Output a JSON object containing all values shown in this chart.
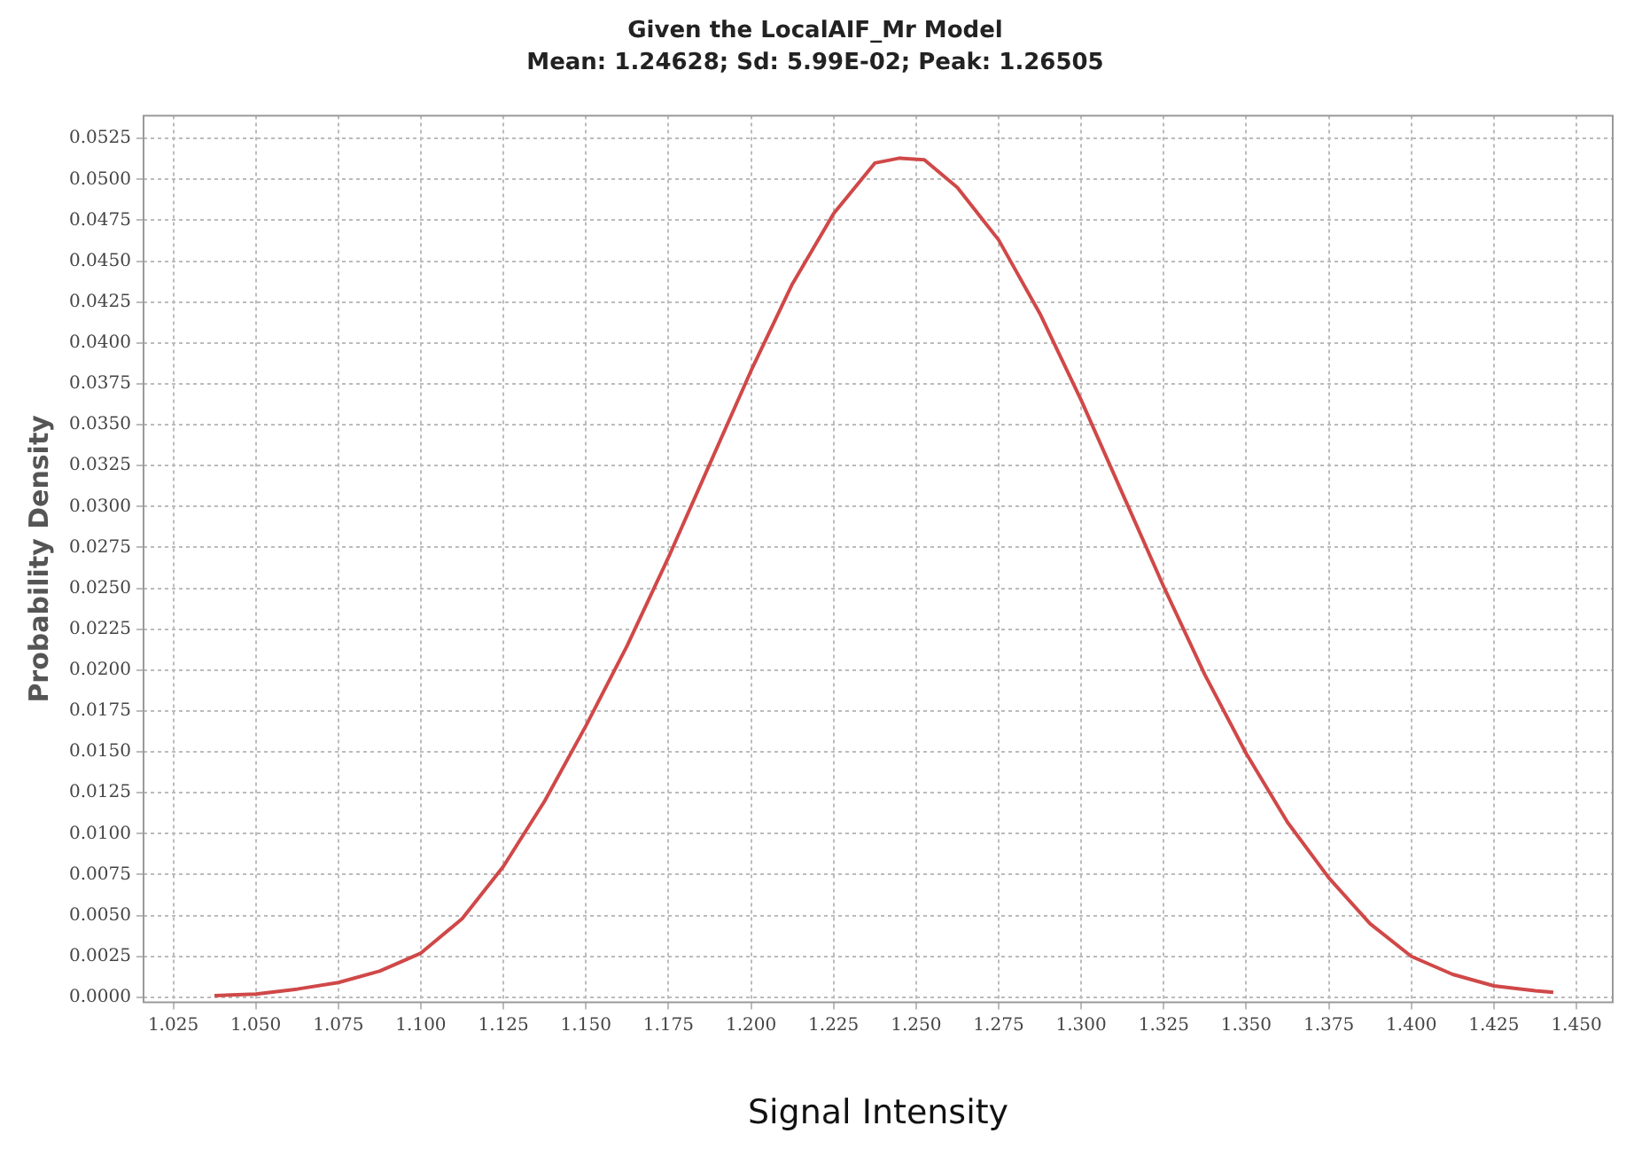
{
  "chart_data": {
    "type": "line",
    "title": "Given the LocalAIF_Mr Model",
    "subtitle": "Mean: 1.24628; Sd: 5.99E-02; Peak: 1.26505",
    "xlabel": "Signal Intensity",
    "ylabel": "Probability Density",
    "x": [
      1.0375,
      1.05,
      1.0625,
      1.075,
      1.0875,
      1.1,
      1.1125,
      1.125,
      1.1375,
      1.15,
      1.1625,
      1.175,
      1.1875,
      1.2,
      1.2125,
      1.225,
      1.2375,
      1.245,
      1.2525,
      1.2625,
      1.275,
      1.2875,
      1.3,
      1.3125,
      1.325,
      1.3375,
      1.35,
      1.3625,
      1.375,
      1.3875,
      1.4,
      1.4125,
      1.425,
      1.4375,
      1.443
    ],
    "series": [
      {
        "color": "#d04848",
        "values": [
          0.0001,
          0.0002,
          0.0005,
          0.0009,
          0.0016,
          0.0027,
          0.0048,
          0.008,
          0.012,
          0.0166,
          0.0215,
          0.0269,
          0.0326,
          0.0383,
          0.0436,
          0.0479,
          0.051,
          0.0513,
          0.0512,
          0.0495,
          0.0463,
          0.0418,
          0.0365,
          0.0308,
          0.0251,
          0.0197,
          0.0149,
          0.0107,
          0.0073,
          0.0045,
          0.0025,
          0.0014,
          0.0007,
          0.0004,
          0.0003
        ]
      }
    ],
    "xlim": [
      1.016,
      1.461
    ],
    "xticks": [
      {
        "value": 1.025,
        "label": "1.025"
      },
      {
        "value": 1.05,
        "label": "1.050"
      },
      {
        "value": 1.075,
        "label": "1.075"
      },
      {
        "value": 1.1,
        "label": "1.100"
      },
      {
        "value": 1.125,
        "label": "1.125"
      },
      {
        "value": 1.15,
        "label": "1.150"
      },
      {
        "value": 1.175,
        "label": "1.175"
      },
      {
        "value": 1.2,
        "label": "1.200"
      },
      {
        "value": 1.225,
        "label": "1.225"
      },
      {
        "value": 1.25,
        "label": "1.250"
      },
      {
        "value": 1.275,
        "label": "1.275"
      },
      {
        "value": 1.3,
        "label": "1.300"
      },
      {
        "value": 1.325,
        "label": "1.325"
      },
      {
        "value": 1.35,
        "label": "1.350"
      },
      {
        "value": 1.375,
        "label": "1.375"
      },
      {
        "value": 1.4,
        "label": "1.400"
      },
      {
        "value": 1.425,
        "label": "1.425"
      },
      {
        "value": 1.45,
        "label": "1.450"
      }
    ],
    "ylim": [
      -0.0003,
      0.0539
    ],
    "yticks": [
      {
        "value": 0,
        "label": "0.0000"
      },
      {
        "value": 0.0025,
        "label": "0.0025"
      },
      {
        "value": 0.005,
        "label": "0.0050"
      },
      {
        "value": 0.0075,
        "label": "0.0075"
      },
      {
        "value": 0.01,
        "label": "0.0100"
      },
      {
        "value": 0.0125,
        "label": "0.0125"
      },
      {
        "value": 0.015,
        "label": "0.0150"
      },
      {
        "value": 0.0175,
        "label": "0.0175"
      },
      {
        "value": 0.02,
        "label": "0.0200"
      },
      {
        "value": 0.0225,
        "label": "0.0225"
      },
      {
        "value": 0.025,
        "label": "0.0250"
      },
      {
        "value": 0.0275,
        "label": "0.0275"
      },
      {
        "value": 0.03,
        "label": "0.0300"
      },
      {
        "value": 0.0325,
        "label": "0.0325"
      },
      {
        "value": 0.035,
        "label": "0.0350"
      },
      {
        "value": 0.0375,
        "label": "0.0375"
      },
      {
        "value": 0.04,
        "label": "0.0400"
      },
      {
        "value": 0.0425,
        "label": "0.0425"
      },
      {
        "value": 0.045,
        "label": "0.0450"
      },
      {
        "value": 0.0475,
        "label": "0.0475"
      },
      {
        "value": 0.05,
        "label": "0.0500"
      },
      {
        "value": 0.0525,
        "label": "0.0525"
      }
    ],
    "grid": true,
    "legend": false,
    "marker": "none",
    "line_style": "solid"
  }
}
